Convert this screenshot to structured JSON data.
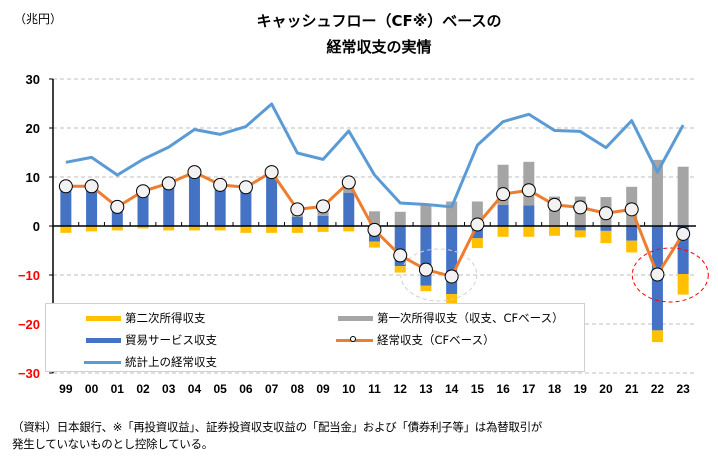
{
  "header": {
    "unit_label": "（兆円）",
    "title_line1": "キャッシュフロー（CF※）ベースの",
    "title_line2": "経常収支の実情"
  },
  "footnote": {
    "line1": "（資料）日本銀行、※「再投資収益」、証券投資収支収益の「配当金」および「債券利子等」は為替取引が",
    "line2": "発生していないものとし控除している。"
  },
  "colors": {
    "secondary_income": "#FFC000",
    "trade_services": "#4472C4",
    "primary_income_cf": "#A5A5A5",
    "current_account_cf": "#ED7D31",
    "current_account_stat": "#5B9BD5",
    "negative_tick": "#FF0000"
  },
  "legend": [
    {
      "key": "secondary_income",
      "label": "第二次所得収支"
    },
    {
      "key": "primary_income_cf",
      "label": "第一次所得収支（収支、CFベース）"
    },
    {
      "key": "trade_services",
      "label": "貿易サービス収支"
    },
    {
      "key": "current_account_cf",
      "label": "経常収支（CFベース）"
    },
    {
      "key": "current_account_stat",
      "label": "統計上の経常収支"
    }
  ],
  "chart_data": {
    "type": "bar",
    "title": "キャッシュフロー（CF※）ベースの経常収支の実情",
    "xlabel": "",
    "ylabel": "（兆円）",
    "ylim": [
      -30,
      30
    ],
    "yticks": [
      30,
      20,
      10,
      0,
      -10,
      -20,
      -30
    ],
    "ytick_labels": [
      "30",
      "20",
      "10",
      "0",
      "−10",
      "−20",
      "−30"
    ],
    "grid": true,
    "stacked": true,
    "legend_position": "bottom-left",
    "categories": [
      "99",
      "00",
      "01",
      "02",
      "03",
      "04",
      "05",
      "06",
      "07",
      "08",
      "09",
      "10",
      "11",
      "12",
      "13",
      "14",
      "15",
      "16",
      "17",
      "18",
      "19",
      "20",
      "21",
      "22",
      "23"
    ],
    "series": [
      {
        "name": "第二次所得収支",
        "key": "secondary_income",
        "type": "bar",
        "values": [
          -1.4,
          -1.1,
          -0.9,
          -0.5,
          -0.9,
          -0.9,
          -0.9,
          -1.4,
          -1.4,
          -1.4,
          -1.2,
          -1.1,
          -1.2,
          -1.3,
          -1.1,
          -2.0,
          -2.0,
          -2.2,
          -2.2,
          -1.9,
          -1.4,
          -2.5,
          -2.4,
          -2.4,
          -4.2
        ]
      },
      {
        "name": "貿易サービス収支",
        "key": "trade_services",
        "type": "bar",
        "values": [
          7.8,
          7.6,
          3.0,
          6.5,
          8.5,
          10.1,
          8.1,
          7.5,
          10.0,
          1.9,
          2.1,
          6.8,
          -3.2,
          -8.2,
          -12.2,
          -13.9,
          -2.5,
          4.3,
          4.2,
          -0.1,
          -0.9,
          -1.0,
          -3.0,
          -21.3,
          -9.8
        ]
      },
      {
        "name": "第一次所得収支（収支、CFベース）",
        "key": "primary_income_cf",
        "type": "bar",
        "values": [
          1.2,
          0.3,
          0.9,
          0.6,
          0.2,
          0.2,
          0.3,
          0.4,
          0.6,
          1.5,
          2.0,
          1.2,
          3.0,
          2.9,
          4.4,
          5.0,
          5.0,
          8.2,
          8.9,
          6.0,
          6.0,
          5.9,
          8.0,
          13.5,
          12.1
        ]
      },
      {
        "name": "経常収支（CFベース）",
        "key": "current_account_cf",
        "type": "line",
        "values": [
          8.1,
          8.1,
          3.9,
          7.1,
          8.7,
          11.0,
          8.4,
          7.9,
          11.0,
          3.4,
          4.0,
          8.9,
          -0.8,
          -6.0,
          -8.9,
          -10.3,
          0.3,
          6.5,
          7.3,
          4.3,
          3.8,
          2.6,
          3.4,
          -9.9,
          -1.6
        ]
      },
      {
        "name": "統計上の経常収支",
        "key": "current_account_stat",
        "type": "line",
        "values": [
          13.0,
          14.0,
          10.4,
          13.6,
          16.1,
          19.7,
          18.7,
          20.3,
          24.9,
          14.9,
          13.6,
          19.4,
          10.4,
          4.7,
          4.4,
          3.9,
          16.5,
          21.3,
          22.8,
          19.5,
          19.3,
          16.0,
          21.5,
          11.0,
          20.6
        ]
      }
    ],
    "annotations": [
      {
        "type": "ellipse",
        "style": "dashed-gray",
        "around": [
          "13",
          "14"
        ]
      },
      {
        "type": "ellipse",
        "style": "dashed-red",
        "around": [
          "22",
          "23"
        ]
      }
    ]
  }
}
